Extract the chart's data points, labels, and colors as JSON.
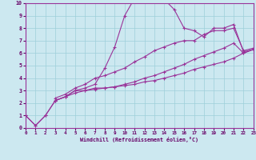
{
  "xlabel": "Windchill (Refroidissement éolien,°C)",
  "bg_color": "#cce8f0",
  "line_color": "#993399",
  "xlim": [
    0,
    23
  ],
  "ylim": [
    0,
    10
  ],
  "xticks": [
    0,
    1,
    2,
    3,
    4,
    5,
    6,
    7,
    8,
    9,
    10,
    11,
    12,
    13,
    14,
    15,
    16,
    17,
    18,
    19,
    20,
    21,
    22,
    23
  ],
  "yticks": [
    0,
    1,
    2,
    3,
    4,
    5,
    6,
    7,
    8,
    9,
    10
  ],
  "series1": {
    "x": [
      0,
      1,
      2,
      3,
      4,
      5,
      6,
      7,
      8,
      9,
      10,
      11,
      12,
      13,
      14,
      15,
      16,
      17,
      18,
      19,
      20,
      21,
      22,
      23
    ],
    "y": [
      1,
      0.2,
      1.0,
      2.2,
      2.5,
      3.0,
      3.0,
      3.2,
      3.2,
      3.3,
      3.4,
      3.5,
      3.7,
      3.8,
      4.0,
      4.2,
      4.4,
      4.7,
      4.9,
      5.1,
      5.3,
      5.6,
      6.0,
      6.3
    ]
  },
  "series2": {
    "x": [
      0,
      1,
      2,
      3,
      4,
      5,
      6,
      7,
      8,
      9,
      10,
      11,
      12,
      13,
      14,
      15,
      16,
      17,
      18,
      19,
      20,
      21,
      22,
      23
    ],
    "y": [
      1,
      0.2,
      1.0,
      2.2,
      2.5,
      3.0,
      3.2,
      3.5,
      4.8,
      6.5,
      9.0,
      10.4,
      10.7,
      10.5,
      10.3,
      9.5,
      8.0,
      7.8,
      7.3,
      8.0,
      8.0,
      8.3,
      6.1,
      6.3
    ]
  },
  "series3": {
    "x": [
      3,
      4,
      5,
      6,
      7,
      8,
      9,
      10,
      11,
      12,
      13,
      14,
      15,
      16,
      17,
      18,
      19,
      20,
      21,
      22,
      23
    ],
    "y": [
      2.4,
      2.7,
      3.2,
      3.5,
      4.0,
      4.2,
      4.5,
      4.8,
      5.3,
      5.7,
      6.2,
      6.5,
      6.8,
      7.0,
      7.0,
      7.5,
      7.8,
      7.8,
      8.0,
      6.2,
      6.4
    ]
  },
  "series4": {
    "x": [
      3,
      4,
      5,
      6,
      7,
      8,
      9,
      10,
      11,
      12,
      13,
      14,
      15,
      16,
      17,
      18,
      19,
      20,
      21,
      22,
      23
    ],
    "y": [
      2.2,
      2.5,
      2.8,
      3.0,
      3.1,
      3.2,
      3.3,
      3.5,
      3.7,
      4.0,
      4.2,
      4.5,
      4.8,
      5.1,
      5.5,
      5.8,
      6.1,
      6.4,
      6.8,
      6.0,
      6.3
    ]
  }
}
